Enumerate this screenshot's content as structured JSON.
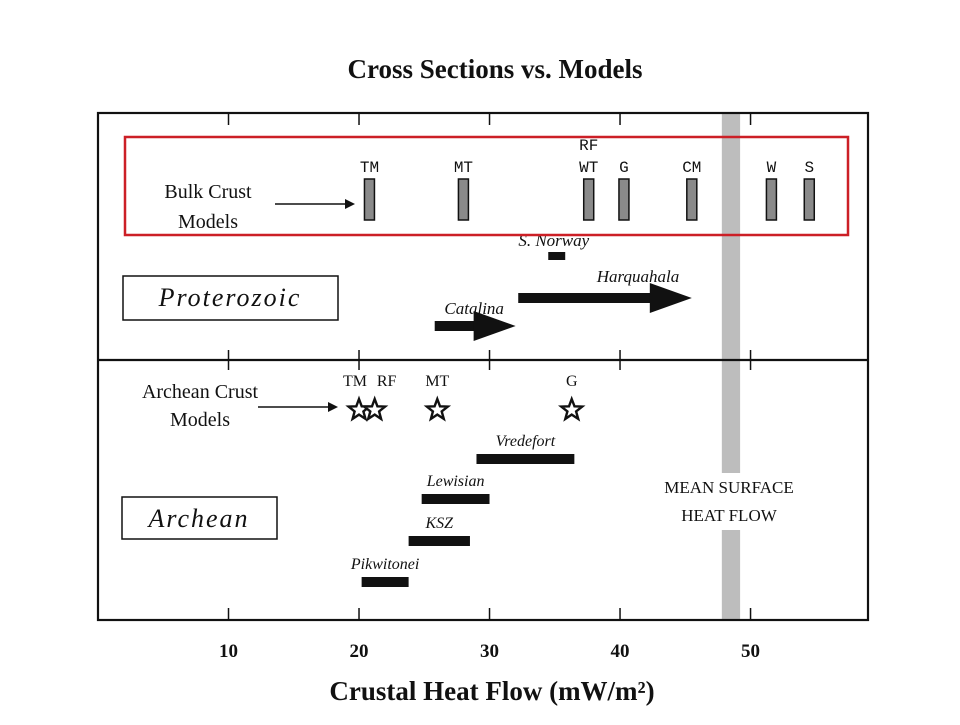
{
  "chart_data": {
    "type": "bar",
    "title": "Cross Sections vs. Models",
    "xlabel": "Crustal Heat Flow  (mW/m²)",
    "xlim": [
      0,
      59
    ],
    "xticks": [
      10,
      20,
      30,
      40,
      50
    ],
    "grid": false,
    "panels": {
      "proterozoic": {
        "label": "Proterozoic",
        "models_label": "Bulk Crust Models",
        "models": [
          {
            "name": "TM",
            "value": 20.8
          },
          {
            "name": "MT",
            "value": 28.0
          },
          {
            "name": "WT",
            "value": 37.6
          },
          {
            "name": "RF",
            "value": 37.6
          },
          {
            "name": "G",
            "value": 40.3
          },
          {
            "name": "CM",
            "value": 45.5
          },
          {
            "name": "W",
            "value": 51.6
          },
          {
            "name": "S",
            "value": 54.5
          }
        ],
        "sections": [
          {
            "name": "S. Norway",
            "x0": 34.5,
            "x1": 35.8,
            "arrow": false
          },
          {
            "name": "Harquahala",
            "x0": 32.2,
            "x1": 45.5,
            "arrow": true
          },
          {
            "name": "Catalina",
            "x0": 25.8,
            "x1": 32.0,
            "arrow": true
          }
        ]
      },
      "archean": {
        "label": "Archean",
        "models_label": "Archean Crust Models",
        "models": [
          {
            "name": "TM",
            "value": 20.0
          },
          {
            "name": "RF",
            "value": 21.2
          },
          {
            "name": "MT",
            "value": 26.0
          },
          {
            "name": "G",
            "value": 36.3
          }
        ],
        "sections": [
          {
            "name": "Vredefort",
            "x0": 29.0,
            "x1": 36.5
          },
          {
            "name": "Lewisian",
            "x0": 24.8,
            "x1": 30.0
          },
          {
            "name": "KSZ",
            "x0": 23.8,
            "x1": 28.5
          },
          {
            "name": "Pikwitonei",
            "x0": 20.2,
            "x1": 23.8
          }
        ]
      }
    },
    "mean_surface_heat_flow": {
      "label_line1": "Mean surface",
      "label_line2": "heat flow",
      "x0": 47.8,
      "x1": 49.2
    },
    "highlight_box": {
      "color": "#cc1f26"
    }
  }
}
